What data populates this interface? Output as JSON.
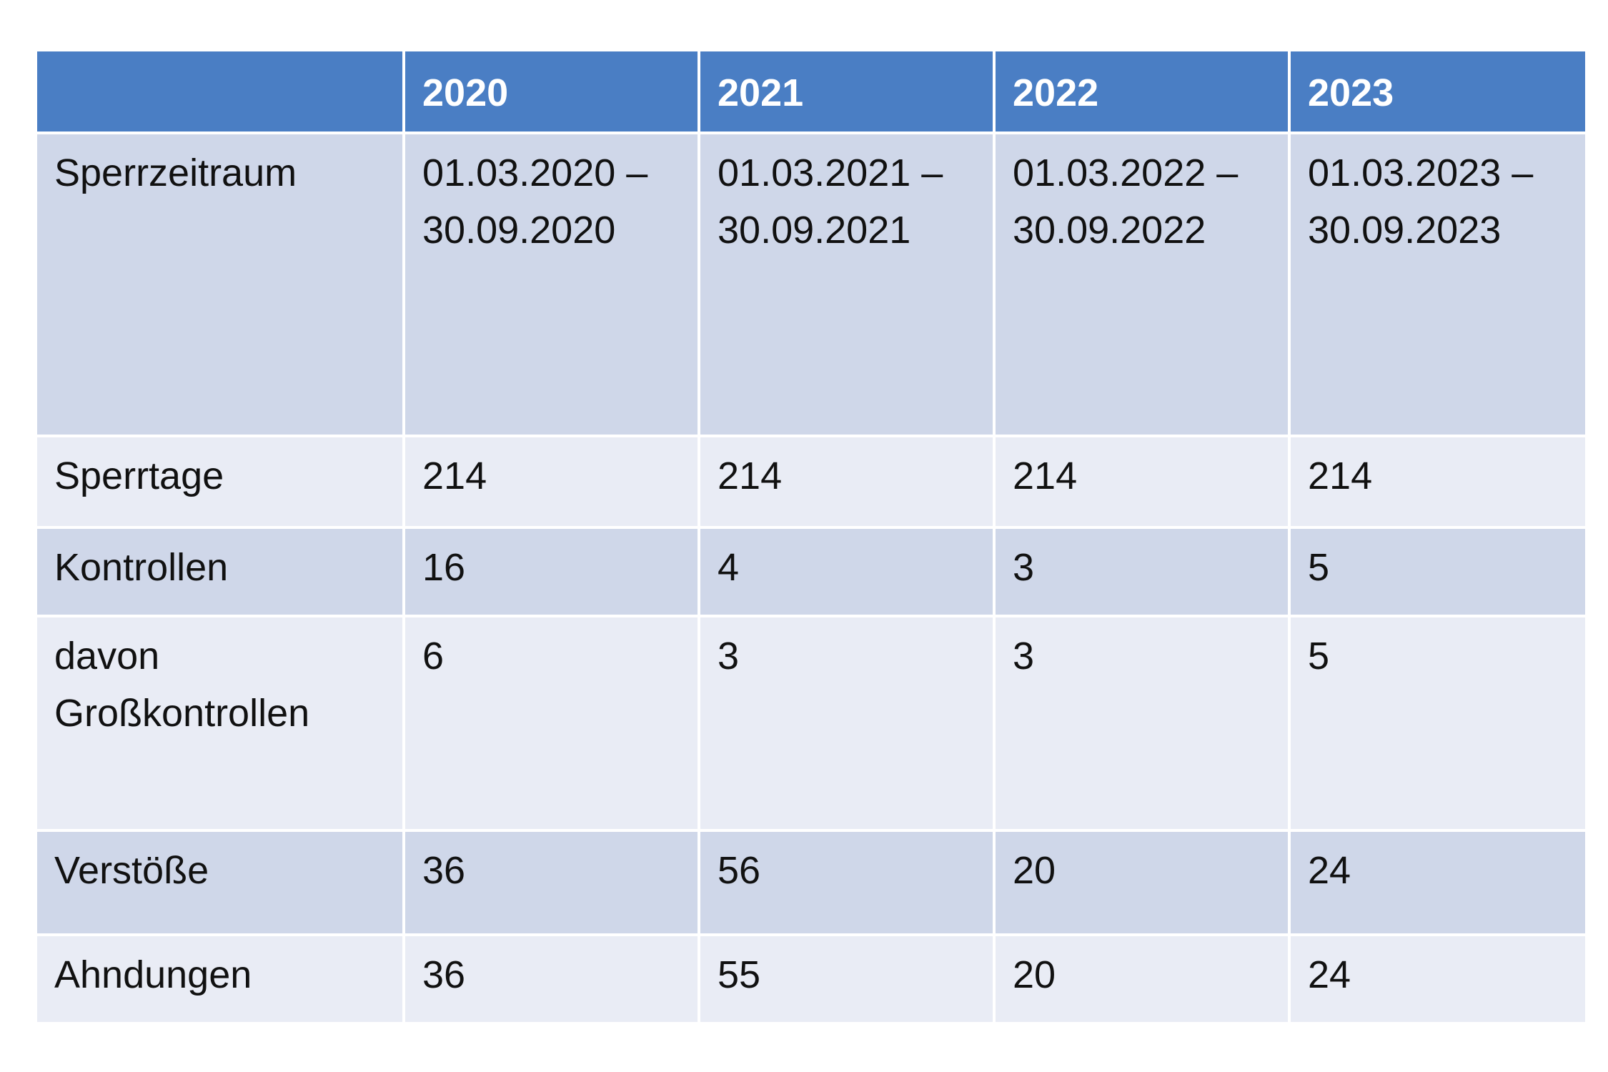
{
  "table": {
    "headers": [
      "",
      "2020",
      "2021",
      "2022",
      "2023"
    ],
    "rows": [
      {
        "label_lines": [
          "Sperrzeitraum"
        ],
        "cells": [
          [
            "01.03.2020 –",
            "30.09.2020"
          ],
          [
            "01.03.2021 –",
            "30.09.2021"
          ],
          [
            "01.03.2022 –",
            "30.09.2022"
          ],
          [
            "01.03.2023 –",
            "30.09.2023"
          ]
        ]
      },
      {
        "label_lines": [
          "Sperrtage"
        ],
        "cells": [
          [
            "214"
          ],
          [
            "214"
          ],
          [
            "214"
          ],
          [
            "214"
          ]
        ]
      },
      {
        "label_lines": [
          "Kontrollen"
        ],
        "cells": [
          [
            "16"
          ],
          [
            "4"
          ],
          [
            "3"
          ],
          [
            "5"
          ]
        ]
      },
      {
        "label_lines": [
          "davon",
          "Großkontrollen"
        ],
        "cells": [
          [
            "6"
          ],
          [
            "3"
          ],
          [
            "3"
          ],
          [
            "5"
          ]
        ]
      },
      {
        "label_lines": [
          "Verstöße"
        ],
        "cells": [
          [
            "36"
          ],
          [
            "56"
          ],
          [
            "20"
          ],
          [
            "24"
          ]
        ]
      },
      {
        "label_lines": [
          "Ahndungen"
        ],
        "cells": [
          [
            "36"
          ],
          [
            "55"
          ],
          [
            "20"
          ],
          [
            "24"
          ]
        ]
      }
    ]
  },
  "colors": {
    "header_bg": "#4a7ec4",
    "row_dark": "#cfd7e9",
    "row_light": "#e9ecf5"
  }
}
